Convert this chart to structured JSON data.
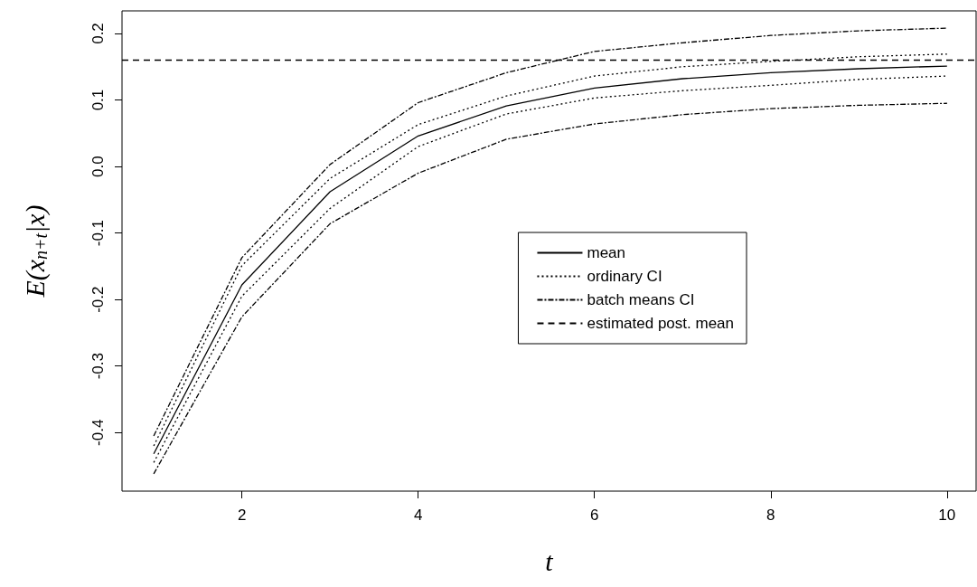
{
  "chart_data": {
    "type": "line",
    "xlabel": "t",
    "ylabel": "E(x$_{n+t}$|x)",
    "x": [
      1,
      2,
      3,
      4,
      5,
      6,
      7,
      8,
      9,
      10
    ],
    "series": [
      {
        "name": "mean",
        "color": "#000000",
        "line_style": "solid",
        "values": [
          -0.432,
          -0.178,
          -0.038,
          0.046,
          0.091,
          0.118,
          0.132,
          0.141,
          0.147,
          0.151
        ]
      },
      {
        "name": "ordinary CI",
        "color": "#000000",
        "line_style": "dotted",
        "values": [
          -0.42,
          -0.149,
          -0.018,
          0.063,
          0.106,
          0.136,
          0.15,
          0.158,
          0.165,
          0.169
        ]
      },
      {
        "color": "#000000",
        "line_style": "dotted",
        "values": [
          -0.445,
          -0.195,
          -0.063,
          0.03,
          0.079,
          0.103,
          0.114,
          0.122,
          0.131,
          0.136
        ]
      },
      {
        "name": "batch means CI",
        "color": "#000000",
        "line_style": "dashdot",
        "values": [
          -0.405,
          -0.137,
          0.003,
          0.096,
          0.141,
          0.173,
          0.186,
          0.197,
          0.204,
          0.208
        ]
      },
      {
        "color": "#000000",
        "line_style": "dashdot",
        "values": [
          -0.462,
          -0.226,
          -0.086,
          -0.01,
          0.041,
          0.064,
          0.078,
          0.087,
          0.092,
          0.095
        ]
      }
    ],
    "ref_lines": [
      {
        "axis": "y",
        "value": 0.159,
        "label": "estimated post. mean",
        "color": "#000000",
        "line_style": "dashed"
      }
    ],
    "xlim": [
      0.64,
      10.33
    ],
    "xticks": [
      2,
      4,
      6,
      8,
      10
    ],
    "ylim": [
      -0.488,
      0.234
    ],
    "yticks": [
      {
        "value": -0.4,
        "label": "-0.4"
      },
      {
        "value": -0.3,
        "label": "-0.3"
      },
      {
        "value": -0.2,
        "label": "-0.2"
      },
      {
        "value": -0.1,
        "label": "-0.1"
      },
      {
        "value": 0,
        "label": "0.0"
      },
      {
        "value": 0.1,
        "label": "0.1"
      },
      {
        "value": 0.2,
        "label": "0.2"
      }
    ],
    "grid": false,
    "legend": "right",
    "marker": "none"
  }
}
